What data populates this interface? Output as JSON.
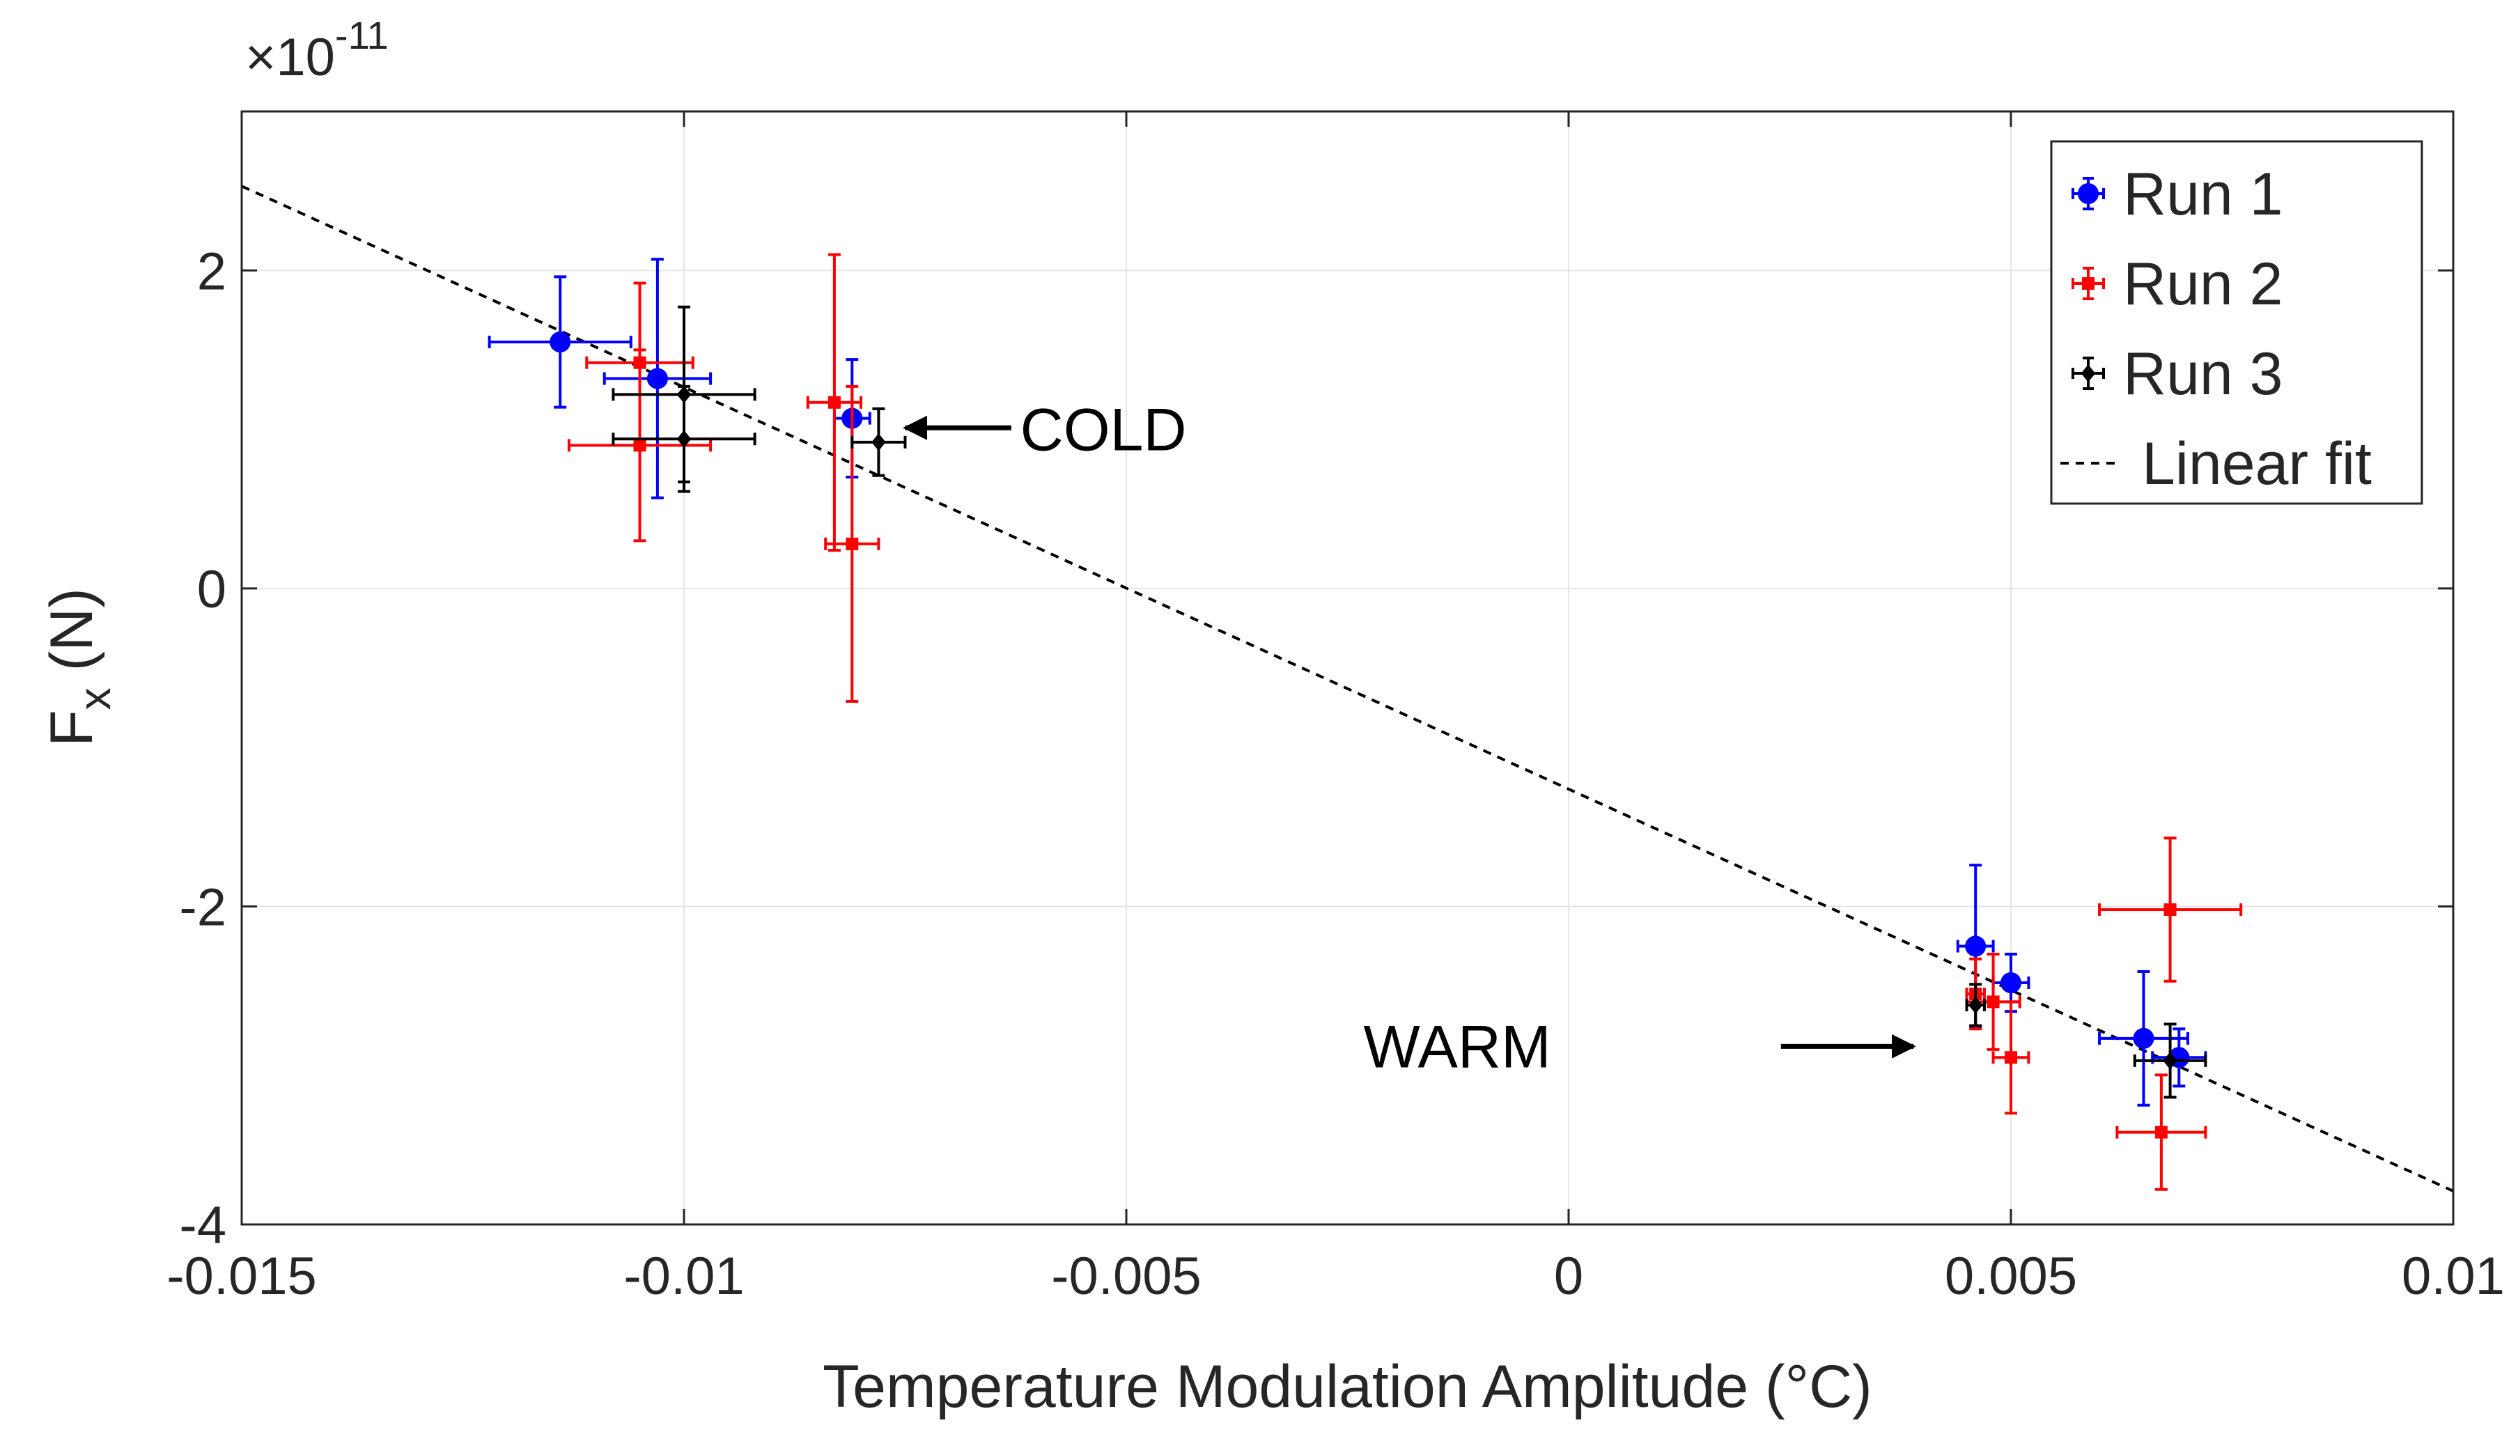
{
  "chart_data": {
    "type": "scatter",
    "xlabel": "Temperature Modulation Amplitude (°C)",
    "ylabel": "F",
    "ylabel_sub": "x",
    "ylabel_unit": " (N)",
    "exponent_label": "×10",
    "exponent_power": "-11",
    "xlim": [
      -0.015,
      0.01
    ],
    "ylim": [
      -4,
      3
    ],
    "xticks": [
      -0.015,
      -0.01,
      -0.005,
      0,
      0.005,
      0.01
    ],
    "xtick_labels": [
      "-0.015",
      "-0.01",
      "-0.005",
      "0",
      "0.005",
      "0.01"
    ],
    "yticks": [
      -4,
      -2,
      0,
      2
    ],
    "ytick_labels": [
      "-4",
      "-2",
      "0",
      "2"
    ],
    "grid": true,
    "legend_position": "top-right",
    "series": [
      {
        "name": "Run 1",
        "color": "#0000ff",
        "marker": "circle",
        "points": [
          {
            "x": -0.0114,
            "y": 1.55,
            "xerr": 0.0008,
            "yerr": 0.41
          },
          {
            "x": -0.0103,
            "y": 1.32,
            "xerr": 0.0006,
            "yerr": 0.75
          },
          {
            "x": -0.0081,
            "y": 1.07,
            "xerr": 0.0002,
            "yerr": 0.37
          },
          {
            "x": 0.0046,
            "y": -2.25,
            "xerr": 0.0002,
            "yerr": 0.51
          },
          {
            "x": 0.005,
            "y": -2.48,
            "xerr": 0.0002,
            "yerr": 0.18
          },
          {
            "x": 0.0065,
            "y": -2.83,
            "xerr": 0.0005,
            "yerr": 0.42
          },
          {
            "x": 0.0069,
            "y": -2.95,
            "xerr": 0.0003,
            "yerr": 0.18
          }
        ]
      },
      {
        "name": "Run 2",
        "color": "#ff0000",
        "marker": "square",
        "points": [
          {
            "x": -0.0105,
            "y": 1.42,
            "xerr": 0.0006,
            "yerr": 0.5
          },
          {
            "x": -0.0105,
            "y": 0.9,
            "xerr": 0.0008,
            "yerr": 0.6
          },
          {
            "x": -0.0083,
            "y": 1.17,
            "xerr": 0.0003,
            "yerr": 0.93
          },
          {
            "x": -0.0081,
            "y": 0.28,
            "xerr": 0.0003,
            "yerr": 0.99
          },
          {
            "x": 0.0046,
            "y": -2.55,
            "xerr": 0.0001,
            "yerr": 0.22
          },
          {
            "x": 0.0048,
            "y": -2.6,
            "xerr": 0.0003,
            "yerr": 0.3
          },
          {
            "x": 0.005,
            "y": -2.95,
            "xerr": 0.0002,
            "yerr": 0.35
          },
          {
            "x": 0.0067,
            "y": -3.42,
            "xerr": 0.0005,
            "yerr": 0.36
          },
          {
            "x": 0.0068,
            "y": -2.02,
            "xerr": 0.0008,
            "yerr": 0.45
          }
        ]
      },
      {
        "name": "Run 3",
        "color": "#000000",
        "marker": "diamond",
        "points": [
          {
            "x": -0.01,
            "y": 1.22,
            "xerr": 0.0008,
            "yerr": 0.55
          },
          {
            "x": -0.01,
            "y": 0.94,
            "xerr": 0.0008,
            "yerr": 0.33
          },
          {
            "x": -0.0078,
            "y": 0.92,
            "xerr": 0.0003,
            "yerr": 0.21
          },
          {
            "x": 0.0046,
            "y": -2.62,
            "xerr": 0.0001,
            "yerr": 0.13
          },
          {
            "x": 0.0068,
            "y": -2.97,
            "xerr": 0.0004,
            "yerr": 0.23
          }
        ]
      }
    ],
    "fit": {
      "name": "Linear fit",
      "color": "#000000",
      "style": "dashed",
      "x": [
        -0.015,
        0.01
      ],
      "y": [
        2.53,
        -3.79
      ]
    },
    "annotations": [
      {
        "text": "COLD",
        "arrow_from": [
          -0.0063,
          1.01
        ],
        "arrow_to": [
          -0.0075,
          1.01
        ],
        "text_at": [
          -0.0062,
          1.0
        ]
      },
      {
        "text": "WARM",
        "arrow_from": [
          0.0024,
          -2.88
        ],
        "arrow_to": [
          0.0039,
          -2.88
        ],
        "text_at": [
          -0.0002,
          -2.88
        ]
      }
    ]
  }
}
